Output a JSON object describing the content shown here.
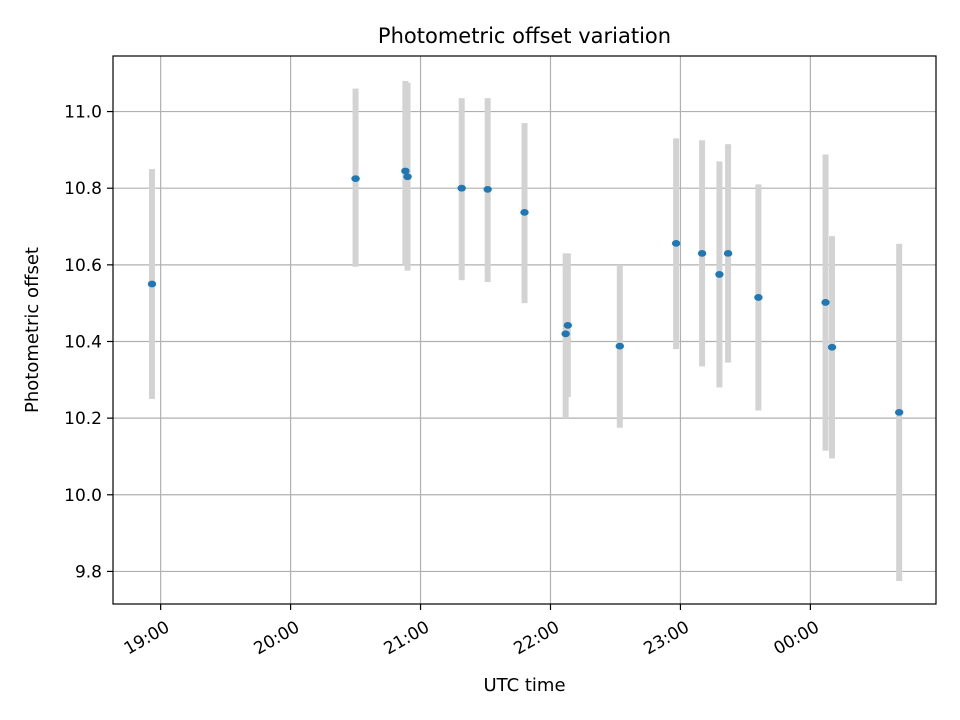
{
  "chart_data": {
    "type": "scatter",
    "title": "Photometric offset variation",
    "xlabel": "UTC time",
    "ylabel": "Photometric offset",
    "x_unit": "hours",
    "xlim": [
      "18:38",
      "00:58"
    ],
    "ylim": [
      9.715,
      11.145
    ],
    "grid": true,
    "x_ticks": [
      {
        "time": "19:00",
        "label": "19:00"
      },
      {
        "time": "20:00",
        "label": "20:00"
      },
      {
        "time": "21:00",
        "label": "21:00"
      },
      {
        "time": "22:00",
        "label": "22:00"
      },
      {
        "time": "23:00",
        "label": "23:00"
      },
      {
        "time": "00:00",
        "label": "00:00"
      }
    ],
    "y_ticks": [
      {
        "value": 9.8,
        "label": "9.8"
      },
      {
        "value": 10.0,
        "label": "10.0"
      },
      {
        "value": 10.2,
        "label": "10.2"
      },
      {
        "value": 10.4,
        "label": "10.4"
      },
      {
        "value": 10.6,
        "label": "10.6"
      },
      {
        "value": 10.8,
        "label": "10.8"
      },
      {
        "value": 11.0,
        "label": "11.0"
      }
    ],
    "colors": {
      "point": "#1f77b4",
      "errorbar": "#d3d3d3",
      "grid": "#b0b0b0"
    },
    "points": [
      {
        "x": "18:56",
        "y": 10.55,
        "ylow": 10.25,
        "yhigh": 10.85
      },
      {
        "x": "20:30",
        "y": 10.825,
        "ylow": 10.595,
        "yhigh": 11.06
      },
      {
        "x": "20:53",
        "y": 10.845,
        "ylow": 10.6,
        "yhigh": 11.08
      },
      {
        "x": "20:54",
        "y": 10.83,
        "ylow": 10.585,
        "yhigh": 11.075
      },
      {
        "x": "21:19",
        "y": 10.8,
        "ylow": 10.56,
        "yhigh": 11.035
      },
      {
        "x": "21:31",
        "y": 10.797,
        "ylow": 10.555,
        "yhigh": 11.035
      },
      {
        "x": "21:48",
        "y": 10.737,
        "ylow": 10.5,
        "yhigh": 10.97
      },
      {
        "x": "22:07",
        "y": 10.42,
        "ylow": 10.2,
        "yhigh": 10.63
      },
      {
        "x": "22:08",
        "y": 10.442,
        "ylow": 10.255,
        "yhigh": 10.63
      },
      {
        "x": "22:32",
        "y": 10.388,
        "ylow": 10.175,
        "yhigh": 10.6
      },
      {
        "x": "22:58",
        "y": 10.656,
        "ylow": 10.38,
        "yhigh": 10.93
      },
      {
        "x": "23:10",
        "y": 10.63,
        "ylow": 10.335,
        "yhigh": 10.925
      },
      {
        "x": "23:18",
        "y": 10.575,
        "ylow": 10.28,
        "yhigh": 10.87
      },
      {
        "x": "23:22",
        "y": 10.63,
        "ylow": 10.345,
        "yhigh": 10.915
      },
      {
        "x": "23:36",
        "y": 10.515,
        "ylow": 10.22,
        "yhigh": 10.81
      },
      {
        "x": "00:07",
        "y": 10.502,
        "ylow": 10.115,
        "yhigh": 10.888
      },
      {
        "x": "00:10",
        "y": 10.385,
        "ylow": 10.095,
        "yhigh": 10.675
      },
      {
        "x": "00:41",
        "y": 10.215,
        "ylow": 9.775,
        "yhigh": 10.655
      }
    ]
  }
}
